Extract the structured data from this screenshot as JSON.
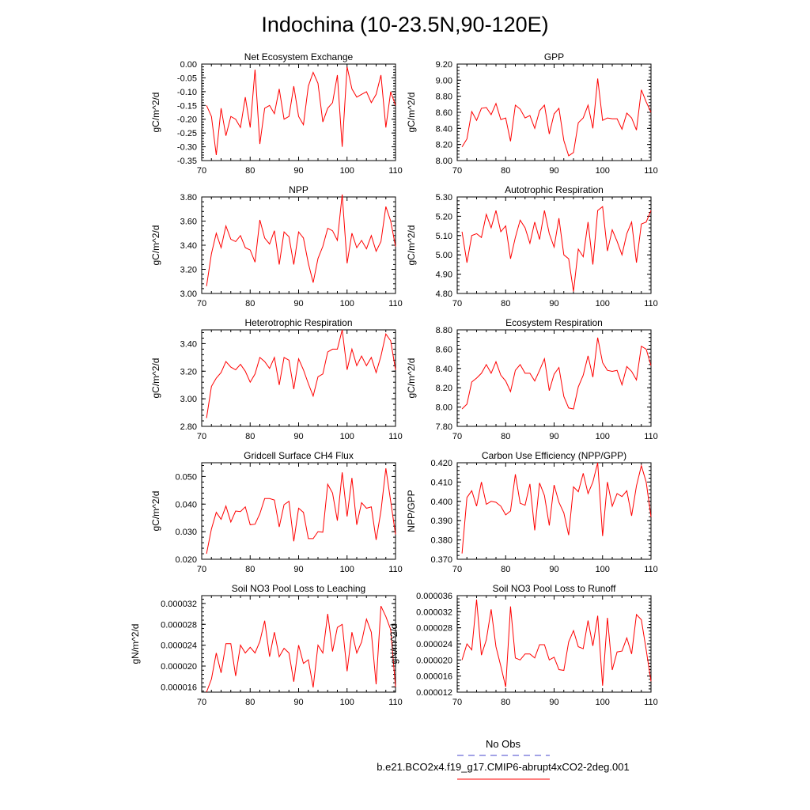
{
  "page": {
    "title": "Indochina (10-23.5N,90-120E)",
    "legend": {
      "entries": [
        {
          "label": "No Obs",
          "style": "dashed",
          "color": "#4444cc"
        },
        {
          "label": "b.e21.BCO2x4.f19_g17.CMIP6-abrupt4xCO2-2deg.001",
          "style": "solid",
          "color": "#ff0000"
        }
      ]
    }
  },
  "chart_data": [
    {
      "type": "line",
      "title": "Net Ecosystem Exchange",
      "ylabel": "gC/m^2/d",
      "xlim": [
        70,
        110
      ],
      "xticks": [
        70,
        80,
        90,
        100,
        110
      ],
      "xtick_labels": [
        "70",
        "80",
        "90",
        "100",
        "110"
      ],
      "ylim": [
        -0.35,
        0.0
      ],
      "yticks": [
        0.0,
        -0.05,
        -0.1,
        -0.15,
        -0.2,
        -0.25,
        -0.3,
        -0.35
      ],
      "ytick_labels": [
        "0.00",
        "-0.05",
        "-0.10",
        "-0.15",
        "-0.20",
        "-0.25",
        "-0.30",
        "-0.35"
      ],
      "series": [
        {
          "name": "b.e21.BCO2x4.f19_g17.CMIP6-abrupt4xCO2-2deg.001",
          "color": "#ff0000",
          "x_start": 71,
          "values": [
            -0.15,
            -0.19,
            -0.33,
            -0.16,
            -0.26,
            -0.19,
            -0.2,
            -0.23,
            -0.12,
            -0.23,
            -0.02,
            -0.29,
            -0.16,
            -0.15,
            -0.18,
            -0.09,
            -0.2,
            -0.19,
            -0.08,
            -0.19,
            -0.22,
            -0.08,
            -0.03,
            -0.07,
            -0.21,
            -0.16,
            -0.14,
            -0.04,
            -0.3,
            -0.01,
            -0.09,
            -0.12,
            -0.11,
            -0.1,
            -0.14,
            -0.11,
            -0.04,
            -0.23,
            -0.1,
            -0.15
          ]
        }
      ]
    },
    {
      "type": "line",
      "title": "GPP",
      "ylabel": "gC/m^2/d",
      "xlim": [
        70,
        110
      ],
      "xticks": [
        70,
        80,
        90,
        100,
        110
      ],
      "xtick_labels": [
        "70",
        "80",
        "90",
        "100",
        "110"
      ],
      "ylim": [
        8.0,
        9.2
      ],
      "yticks": [
        8.0,
        8.2,
        8.4,
        8.6,
        8.8,
        9.0,
        9.2
      ],
      "ytick_labels": [
        "8.00",
        "8.20",
        "8.40",
        "8.60",
        "8.80",
        "9.00",
        "9.20"
      ],
      "series": [
        {
          "name": "b.e21.BCO2x4.f19_g17.CMIP6-abrupt4xCO2-2deg.001",
          "color": "#ff0000",
          "x_start": 71,
          "values": [
            8.17,
            8.27,
            8.61,
            8.5,
            8.65,
            8.66,
            8.57,
            8.71,
            8.51,
            8.53,
            8.24,
            8.69,
            8.64,
            8.53,
            8.56,
            8.4,
            8.62,
            8.69,
            8.33,
            8.58,
            8.65,
            8.25,
            8.06,
            8.1,
            8.47,
            8.53,
            8.69,
            8.4,
            9.02,
            8.5,
            8.53,
            8.52,
            8.52,
            8.39,
            8.59,
            8.53,
            8.38,
            8.88,
            8.73,
            8.6
          ]
        }
      ]
    },
    {
      "type": "line",
      "title": "NPP",
      "ylabel": "gC/m^2/d",
      "xlim": [
        70,
        110
      ],
      "xticks": [
        70,
        80,
        90,
        100,
        110
      ],
      "xtick_labels": [
        "70",
        "80",
        "90",
        "100",
        "110"
      ],
      "ylim": [
        3.0,
        3.8
      ],
      "yticks": [
        3.0,
        3.2,
        3.4,
        3.6,
        3.8
      ],
      "ytick_labels": [
        "3.00",
        "3.20",
        "3.40",
        "3.60",
        "3.80"
      ],
      "series": [
        {
          "name": "b.e21.BCO2x4.f19_g17.CMIP6-abrupt4xCO2-2deg.001",
          "color": "#ff0000",
          "x_start": 71,
          "values": [
            3.06,
            3.33,
            3.5,
            3.38,
            3.56,
            3.45,
            3.43,
            3.48,
            3.38,
            3.36,
            3.26,
            3.61,
            3.46,
            3.41,
            3.52,
            3.24,
            3.51,
            3.47,
            3.24,
            3.51,
            3.46,
            3.25,
            3.09,
            3.29,
            3.39,
            3.54,
            3.52,
            3.44,
            3.82,
            3.25,
            3.5,
            3.38,
            3.44,
            3.37,
            3.48,
            3.35,
            3.43,
            3.72,
            3.6,
            3.39
          ]
        }
      ]
    },
    {
      "type": "line",
      "title": "Autotrophic Respiration",
      "ylabel": "gC/m^2/d",
      "xlim": [
        70,
        110
      ],
      "xticks": [
        70,
        80,
        90,
        100,
        110
      ],
      "xtick_labels": [
        "70",
        "80",
        "90",
        "100",
        "110"
      ],
      "ylim": [
        4.8,
        5.3
      ],
      "yticks": [
        4.8,
        4.9,
        5.0,
        5.1,
        5.2,
        5.3
      ],
      "ytick_labels": [
        "4.80",
        "4.90",
        "5.00",
        "5.10",
        "5.20",
        "5.30"
      ],
      "series": [
        {
          "name": "b.e21.BCO2x4.f19_g17.CMIP6-abrupt4xCO2-2deg.001",
          "color": "#ff0000",
          "x_start": 71,
          "values": [
            5.12,
            4.96,
            5.1,
            5.11,
            5.09,
            5.21,
            5.14,
            5.23,
            5.12,
            5.15,
            4.98,
            5.09,
            5.18,
            5.14,
            5.06,
            5.17,
            5.08,
            5.23,
            5.11,
            5.04,
            5.19,
            5.0,
            4.98,
            4.81,
            5.03,
            4.99,
            5.17,
            4.95,
            5.23,
            5.25,
            5.02,
            5.13,
            5.07,
            5.0,
            5.11,
            5.17,
            4.96,
            5.16,
            5.17,
            5.23
          ]
        }
      ]
    },
    {
      "type": "line",
      "title": "Heterotrophic Respiration",
      "ylabel": "gC/m^2/d",
      "xlim": [
        70,
        110
      ],
      "xticks": [
        70,
        80,
        90,
        100,
        110
      ],
      "xtick_labels": [
        "70",
        "80",
        "90",
        "100",
        "110"
      ],
      "ylim": [
        2.8,
        3.5
      ],
      "yticks": [
        2.8,
        3.0,
        3.2,
        3.4
      ],
      "ytick_labels": [
        "2.80",
        "3.00",
        "3.20",
        "3.40"
      ],
      "series": [
        {
          "name": "b.e21.BCO2x4.f19_g17.CMIP6-abrupt4xCO2-2deg.001",
          "color": "#ff0000",
          "x_start": 71,
          "values": [
            2.86,
            3.09,
            3.15,
            3.19,
            3.27,
            3.23,
            3.21,
            3.25,
            3.2,
            3.12,
            3.18,
            3.3,
            3.27,
            3.22,
            3.3,
            3.1,
            3.3,
            3.28,
            3.07,
            3.29,
            3.21,
            3.11,
            3.02,
            3.16,
            3.18,
            3.34,
            3.36,
            3.36,
            3.5,
            3.21,
            3.36,
            3.24,
            3.31,
            3.24,
            3.3,
            3.19,
            3.31,
            3.47,
            3.42,
            3.21
          ]
        }
      ]
    },
    {
      "type": "line",
      "title": "Ecosystem Respiration",
      "ylabel": "gC/m^2/d",
      "xlim": [
        70,
        110
      ],
      "xticks": [
        70,
        80,
        90,
        100,
        110
      ],
      "xtick_labels": [
        "70",
        "80",
        "90",
        "100",
        "110"
      ],
      "ylim": [
        7.8,
        8.8
      ],
      "yticks": [
        7.8,
        8.0,
        8.2,
        8.4,
        8.6,
        8.8
      ],
      "ytick_labels": [
        "7.80",
        "8.00",
        "8.20",
        "8.40",
        "8.60",
        "8.80"
      ],
      "series": [
        {
          "name": "b.e21.BCO2x4.f19_g17.CMIP6-abrupt4xCO2-2deg.001",
          "color": "#ff0000",
          "x_start": 71,
          "values": [
            7.98,
            8.03,
            8.26,
            8.3,
            8.35,
            8.44,
            8.35,
            8.47,
            8.33,
            8.27,
            8.16,
            8.38,
            8.44,
            8.35,
            8.35,
            8.27,
            8.38,
            8.5,
            8.17,
            8.34,
            8.41,
            8.11,
            7.99,
            7.98,
            8.21,
            8.33,
            8.53,
            8.31,
            8.72,
            8.46,
            8.38,
            8.37,
            8.38,
            8.23,
            8.42,
            8.37,
            8.28,
            8.63,
            8.6,
            8.43
          ]
        }
      ]
    },
    {
      "type": "line",
      "title": "Gridcell Surface CH4 Flux",
      "ylabel": "gC/m^2/d",
      "xlim": [
        70,
        110
      ],
      "xticks": [
        70,
        80,
        90,
        100,
        110
      ],
      "xtick_labels": [
        "70",
        "80",
        "90",
        "100",
        "110"
      ],
      "ylim": [
        0.02,
        0.055
      ],
      "yticks": [
        0.02,
        0.03,
        0.04,
        0.05
      ],
      "ytick_labels": [
        "0.020",
        "0.030",
        "0.040",
        "0.050"
      ],
      "series": [
        {
          "name": "b.e21.BCO2x4.f19_g17.CMIP6-abrupt4xCO2-2deg.001",
          "color": "#ff0000",
          "x_start": 71,
          "values": [
            0.022,
            0.031,
            0.037,
            0.0345,
            0.0393,
            0.0335,
            0.0375,
            0.0373,
            0.039,
            0.0325,
            0.0327,
            0.0365,
            0.042,
            0.042,
            0.0415,
            0.0317,
            0.0398,
            0.041,
            0.0265,
            0.0385,
            0.037,
            0.0275,
            0.0275,
            0.03,
            0.0298,
            0.0472,
            0.044,
            0.034,
            0.0515,
            0.0355,
            0.0495,
            0.0325,
            0.0405,
            0.0385,
            0.039,
            0.027,
            0.0375,
            0.053,
            0.041,
            0.029
          ]
        }
      ]
    },
    {
      "type": "line",
      "title": "Carbon Use Efficiency (NPP/GPP)",
      "ylabel": "NPP/GPP",
      "xlim": [
        70,
        110
      ],
      "xticks": [
        70,
        80,
        90,
        100,
        110
      ],
      "xtick_labels": [
        "70",
        "80",
        "90",
        "100",
        "110"
      ],
      "ylim": [
        0.37,
        0.42
      ],
      "yticks": [
        0.37,
        0.38,
        0.39,
        0.4,
        0.41,
        0.42
      ],
      "ytick_labels": [
        "0.370",
        "0.380",
        "0.390",
        "0.400",
        "0.410",
        "0.420"
      ],
      "series": [
        {
          "name": "b.e21.BCO2x4.f19_g17.CMIP6-abrupt4xCO2-2deg.001",
          "color": "#ff0000",
          "x_start": 71,
          "values": [
            0.373,
            0.402,
            0.4055,
            0.3975,
            0.41,
            0.3985,
            0.4,
            0.3995,
            0.3975,
            0.393,
            0.395,
            0.414,
            0.399,
            0.398,
            0.409,
            0.385,
            0.4095,
            0.403,
            0.3875,
            0.4085,
            0.3995,
            0.394,
            0.3825,
            0.4075,
            0.405,
            0.4145,
            0.404,
            0.41,
            0.42,
            0.382,
            0.41,
            0.3975,
            0.404,
            0.4025,
            0.4055,
            0.3925,
            0.408,
            0.4185,
            0.41,
            0.392
          ]
        }
      ]
    },
    {
      "type": "line",
      "title": "Soil NO3 Pool Loss to Leaching",
      "ylabel": "gN/m^2/d",
      "xlim": [
        70,
        110
      ],
      "xticks": [
        70,
        80,
        90,
        100,
        110
      ],
      "xtick_labels": [
        "70",
        "80",
        "90",
        "100",
        "110"
      ],
      "ylim": [
        1.5e-05,
        3.35e-05
      ],
      "yticks": [
        1.6e-05,
        2e-05,
        2.4e-05,
        2.8e-05,
        3.2e-05
      ],
      "ytick_labels": [
        "0.000016",
        "0.000020",
        "0.000024",
        "0.000028",
        "0.000032"
      ],
      "series": [
        {
          "name": "b.e21.BCO2x4.f19_g17.CMIP6-abrupt4xCO2-2deg.001",
          "color": "#ff0000",
          "x_start": 71,
          "values": [
            1.5e-05,
            1.75e-05,
            2.25e-05,
            1.87e-05,
            2.43e-05,
            2.43e-05,
            1.81e-05,
            2.4e-05,
            2.25e-05,
            2.36e-05,
            2.25e-05,
            2.47e-05,
            2.87e-05,
            2.18e-05,
            2.65e-05,
            2.18e-05,
            2.34e-05,
            2.25e-05,
            1.7e-05,
            2.4e-05,
            2.05e-05,
            2.12e-05,
            1.59e-05,
            2.4e-05,
            2.25e-05,
            3e-05,
            2.28e-05,
            2.74e-05,
            2.8e-05,
            1.9e-05,
            2.65e-05,
            2.25e-05,
            2.46e-05,
            2.9e-05,
            2.65e-05,
            1.65e-05,
            3.15e-05,
            2.95e-05,
            2.7e-05,
            1.6e-05
          ]
        }
      ]
    },
    {
      "type": "line",
      "title": "Soil NO3 Pool Loss to Runoff",
      "ylabel": "gN/m^2/d",
      "xlim": [
        70,
        110
      ],
      "xticks": [
        70,
        80,
        90,
        100,
        110
      ],
      "xtick_labels": [
        "70",
        "80",
        "90",
        "100",
        "110"
      ],
      "ylim": [
        1.2e-05,
        3.6e-05
      ],
      "yticks": [
        1.2e-05,
        1.6e-05,
        2e-05,
        2.4e-05,
        2.8e-05,
        3.2e-05,
        3.6e-05
      ],
      "ytick_labels": [
        "0.000012",
        "0.000016",
        "0.000020",
        "0.000024",
        "0.000028",
        "0.000032",
        "0.000036"
      ],
      "series": [
        {
          "name": "b.e21.BCO2x4.f19_g17.CMIP6-abrupt4xCO2-2deg.001",
          "color": "#ff0000",
          "x_start": 71,
          "values": [
            2e-05,
            2.4e-05,
            2.25e-05,
            3.5e-05,
            2.12e-05,
            2.5e-05,
            3.26e-05,
            2.33e-05,
            1.85e-05,
            1.33e-05,
            3.33e-05,
            2.05e-05,
            2e-05,
            2.15e-05,
            2.15e-05,
            2.05e-05,
            2.38e-05,
            2.38e-05,
            2e-05,
            2.07e-05,
            1.76e-05,
            1.74e-05,
            2.45e-05,
            2.73e-05,
            2.33e-05,
            2.28e-05,
            2.98e-05,
            2.35e-05,
            3.1e-05,
            1.36e-05,
            3.05e-05,
            1.75e-05,
            2.2e-05,
            2.22e-05,
            2.55e-05,
            2.15e-05,
            3.13e-05,
            3e-05,
            2.25e-05,
            1.47e-05
          ]
        }
      ]
    }
  ]
}
